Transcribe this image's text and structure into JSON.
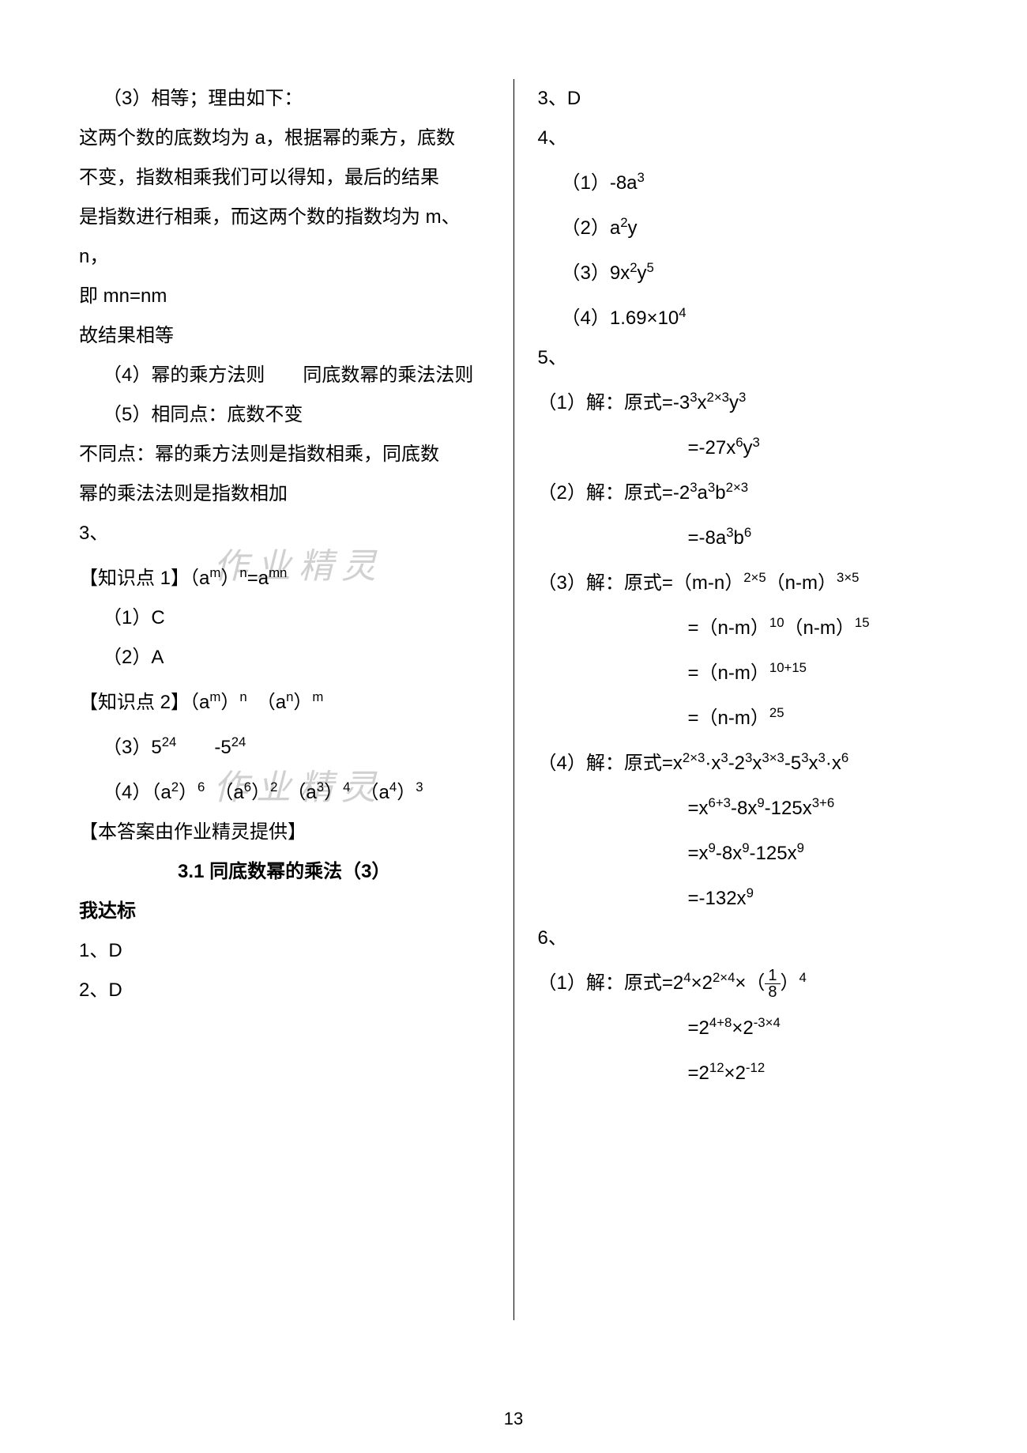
{
  "page_number": "13",
  "watermark": "作业精灵",
  "left": {
    "l1": "（3）相等；理由如下：",
    "l2": "这两个数的底数均为 a，根据幂的乘方，底数",
    "l3": "不变，指数相乘我们可以得知，最后的结果",
    "l4": "是指数进行相乘，而这两个数的指数均为 m、",
    "l5": "n，",
    "l6": "即 mn=nm",
    "l7": "故结果相等",
    "l8": "（4）幂的乘方法则　　同底数幂的乘法法则",
    "l9": "（5）相同点：底数不变",
    "l10": "不同点：幂的乘方法则是指数相乘，同底数",
    "l11": "幂的乘法法则是指数相加",
    "l12": "3、",
    "k1a": "【知识点 1】（a",
    "k1b": "m",
    "k1c": "）",
    "k1d": "n",
    "k1e": "=a",
    "k1f": "mn",
    "l14": "（1）C",
    "l15": "（2）A",
    "k2a": "【知识点 2】（a",
    "k2b": "m",
    "k2c": "）",
    "k2n": "n",
    "k2sp": "　（a",
    "k2d": "n",
    "k2e": "）",
    "k2m": "m",
    "l17a": "（3）5",
    "l17b": "24",
    "l17c": "　　-5",
    "l17d": "24",
    "l18a": "（4）（a",
    "l18b": "2",
    "l18c": "）",
    "l18c2": "6",
    "l18d": "　（a",
    "l18e": "6",
    "l18f": "）",
    "l18f2": "2",
    "l18g": "　（a",
    "l18h": "3",
    "l18i": "）",
    "l18i2": "4",
    "l18j": "　（a",
    "l18k": "4",
    "l18l": "）",
    "l18l2": "3",
    "l19": "【本答案由作业精灵提供】",
    "title": "3.1 同底数幂的乘法（3）",
    "label": "我达标",
    "l20": "1、D",
    "l21": "2、D"
  },
  "right": {
    "r1": "3、D",
    "r2": "4、",
    "r3a": "（1）-8a",
    "r3b": "3",
    "r4a": "（2）a",
    "r4b": "2",
    "r4c": "y",
    "r5a": "（3）9x",
    "r5b": "2",
    "r5c": "y",
    "r5d": "5",
    "r6a": "（4）1.69×10",
    "r6b": "4",
    "r7": "5、",
    "r8a": "（1）解：原式=-3",
    "r8b": "3",
    "r8c": "x",
    "r8d": "2×3",
    "r8e": "y",
    "r8f": "3",
    "r9a": "=-27x",
    "r9b": "6",
    "r9c": "y",
    "r9d": "3",
    "r10a": "（2）解：原式=-2",
    "r10b": "3",
    "r10c": "a",
    "r10d": "3",
    "r10e": "b",
    "r10f": "2×3",
    "r11a": "=-8a",
    "r11b": "3",
    "r11c": "b",
    "r11d": "6",
    "r12a": "（3）解：原式=（m-n）",
    "r12b": "2×5",
    "r12c": "（n-m）",
    "r12d": "3×5",
    "r13a": "=（n-m）",
    "r13b": "10",
    "r13c": "（n-m）",
    "r13d": "15",
    "r14a": "=（n-m）",
    "r14b": "10+15",
    "r15a": "=（n-m）",
    "r15b": "25",
    "r16a": "（4）解：原式=x",
    "r16b": "2×3",
    "r16c": "·x",
    "r16d": "3",
    "r16e": "-2",
    "r16f": "3",
    "r16g": "x",
    "r16h": "3×3",
    "r16i": "-5",
    "r16j": "3",
    "r16k": "x",
    "r16l": "3",
    "r16m": "·x",
    "r16n": "6",
    "r17a": "=x",
    "r17b": "6+3",
    "r17c": "-8x",
    "r17d": "9",
    "r17e": "-125x",
    "r17f": "3+6",
    "r18a": "=x",
    "r18b": "9",
    "r18c": "-8x",
    "r18d": "9",
    "r18e": "-125x",
    "r18f": "9",
    "r19a": "=-132x",
    "r19b": "9",
    "r20": "6、",
    "r21a": "（1）解：原式=2",
    "r21b": "4",
    "r21c": "×2",
    "r21d": "2×4",
    "r21e": "×（",
    "r21fn": "1",
    "r21fd": "8",
    "r21g": "）",
    "r21h": "4",
    "r22a": "=2",
    "r22b": "4+8",
    "r22c": "×2",
    "r22d": "-3×4",
    "r23a": "=2",
    "r23b": "12",
    "r23c": "×2",
    "r23d": "-12"
  }
}
